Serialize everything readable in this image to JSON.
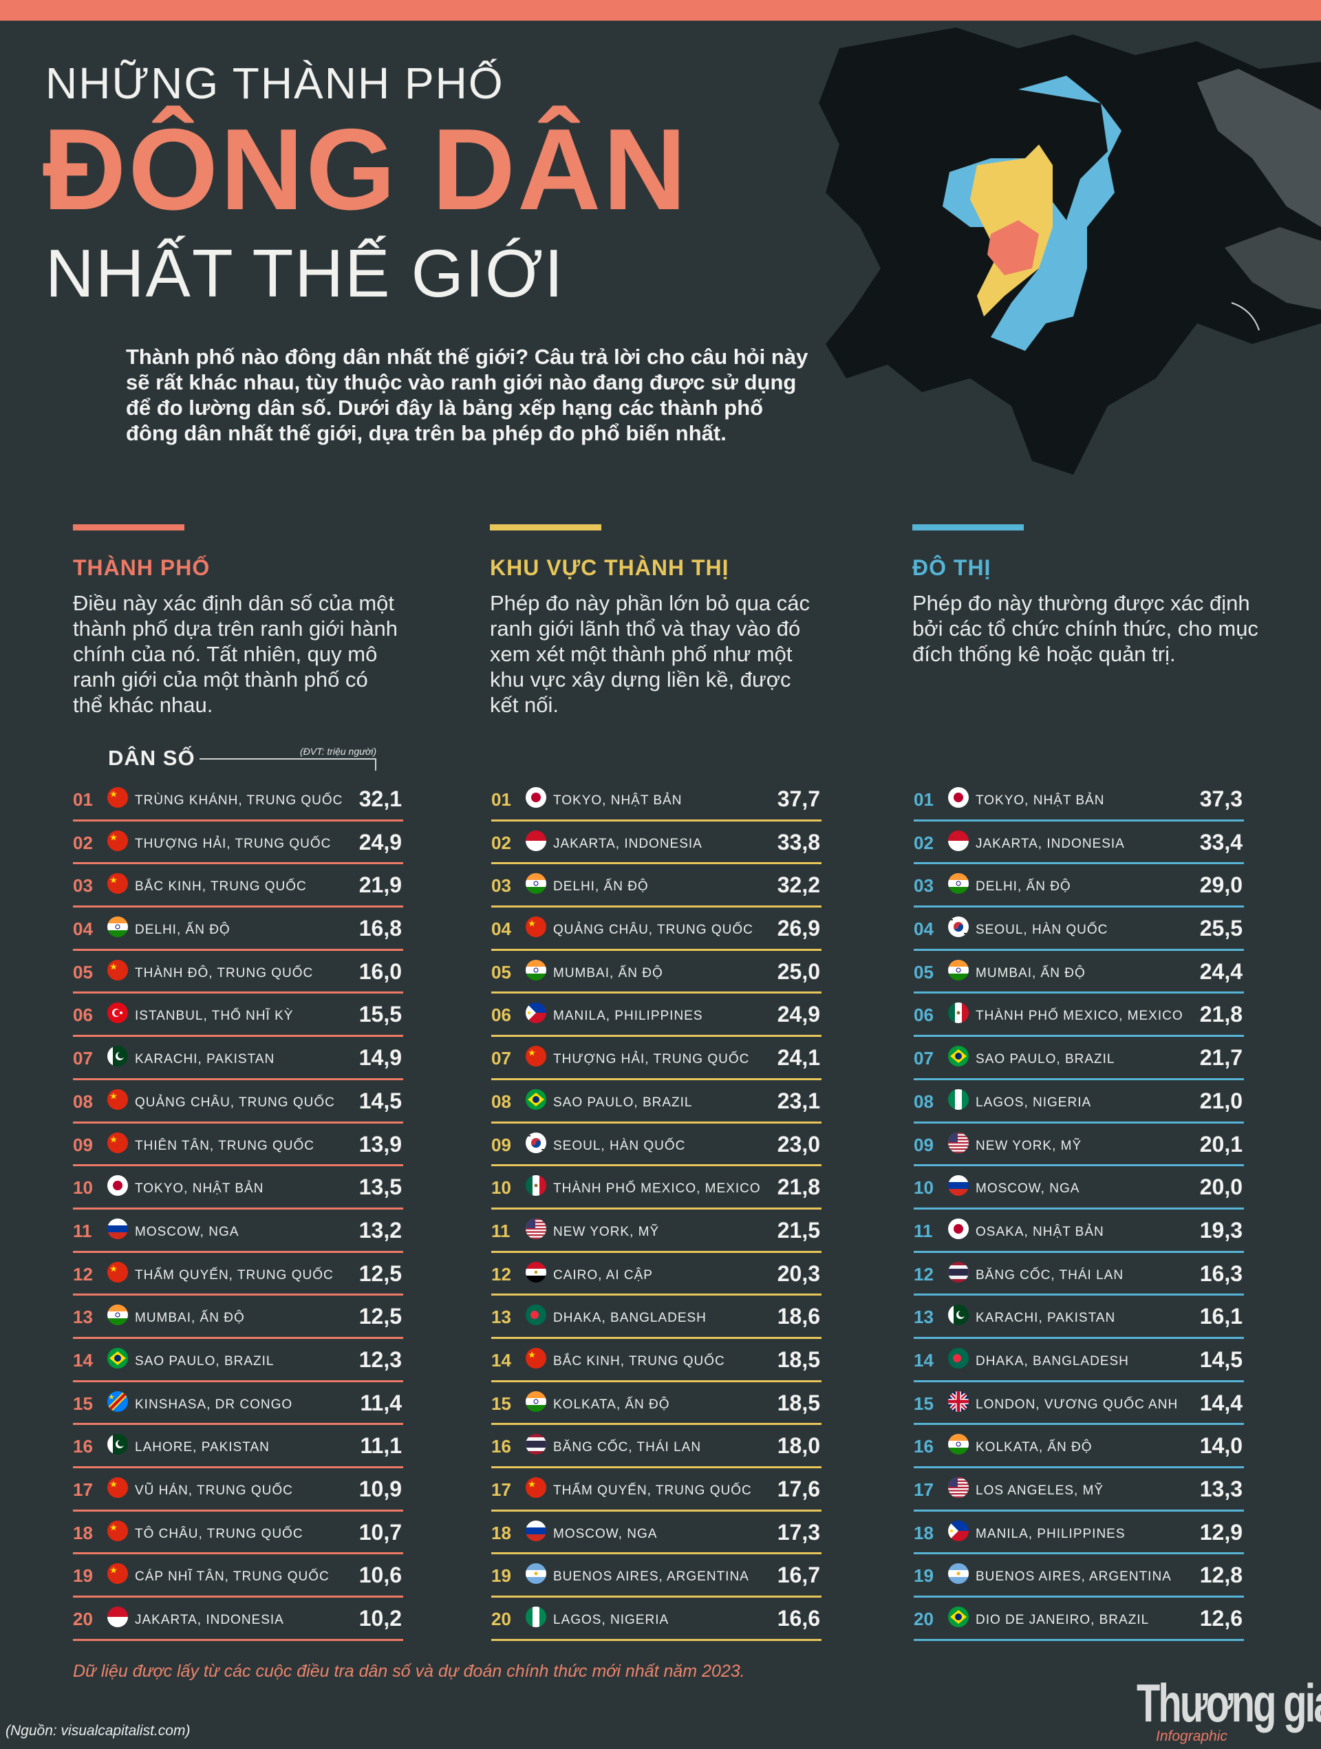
{
  "header": {
    "title_line1": "NHỮNG THÀNH PHỐ",
    "title_line2": "ĐÔNG DÂN",
    "title_line3": "NHẤT THẾ GIỚI",
    "intro": "Thành phố nào đông dân nhất thế giới? Câu trả lời cho câu hỏi này sẽ rất khác nhau, tùy thuộc vào ranh giới nào đang được sử dụng để đo lường dân số. Dưới đây là bảng xếp hạng các thành phố đông dân nhất thế giới, dựa trên ba phép đo phổ biến nhất."
  },
  "colors": {
    "accent_red": "#ee7a66",
    "accent_yellow": "#e8c65a",
    "accent_blue": "#56b4d6",
    "background": "#2c3639"
  },
  "columns": [
    {
      "heading": "THÀNH PHỐ",
      "description": "Điều này xác định dân số của một thành phố dựa trên ranh giới hành chính của nó. Tất nhiên, quy mô ranh giới của một thành phố có thể khác nhau."
    },
    {
      "heading": "KHU VỰC THÀNH THỊ",
      "description": "Phép đo này phần lớn bỏ qua các ranh giới lãnh thổ và thay vào đó xem xét một thành phố như một khu vực xây dựng liền kề, được kết nối."
    },
    {
      "heading": "ĐÔ THỊ",
      "description": "Phép đo này thường được xác định bởi các tổ chức chính thức, cho mục đích thống kê hoặc quản trị."
    }
  ],
  "population_label": "DÂN SỐ",
  "unit_note": "(ĐVT: triệu người)",
  "chart_data": {
    "type": "table",
    "unit": "(ĐVT: triệu người)",
    "columns": [
      "THÀNH PHỐ",
      "KHU VỰC THÀNH THỊ",
      "ĐÔ THỊ"
    ],
    "lists": [
      {
        "rows": [
          {
            "rank": "01",
            "flag": "china",
            "city": "TRÙNG KHÁNH, TRUNG QUỐC",
            "value": "32,1"
          },
          {
            "rank": "02",
            "flag": "china",
            "city": "THƯỢNG HẢI, TRUNG QUỐC",
            "value": "24,9"
          },
          {
            "rank": "03",
            "flag": "china",
            "city": "BẮC KINH, TRUNG QUỐC",
            "value": "21,9"
          },
          {
            "rank": "04",
            "flag": "india",
            "city": "DELHI, ẤN ĐỘ",
            "value": "16,8"
          },
          {
            "rank": "05",
            "flag": "china",
            "city": "THÀNH ĐÔ, TRUNG QUỐC",
            "value": "16,0"
          },
          {
            "rank": "06",
            "flag": "turkey",
            "city": "ISTANBUL, THỔ NHĨ KỲ",
            "value": "15,5"
          },
          {
            "rank": "07",
            "flag": "pakistan",
            "city": "KARACHI, PAKISTAN",
            "value": "14,9"
          },
          {
            "rank": "08",
            "flag": "china",
            "city": "QUẢNG CHÂU, TRUNG QUỐC",
            "value": "14,5"
          },
          {
            "rank": "09",
            "flag": "china",
            "city": "THIÊN TÂN, TRUNG QUỐC",
            "value": "13,9"
          },
          {
            "rank": "10",
            "flag": "japan",
            "city": "TOKYO, NHẬT BẢN",
            "value": "13,5"
          },
          {
            "rank": "11",
            "flag": "russia",
            "city": "MOSCOW, NGA",
            "value": "13,2"
          },
          {
            "rank": "12",
            "flag": "china",
            "city": "THẨM QUYẾN, TRUNG QUỐC",
            "value": "12,5"
          },
          {
            "rank": "13",
            "flag": "india",
            "city": "MUMBAI, ẤN ĐỘ",
            "value": "12,5"
          },
          {
            "rank": "14",
            "flag": "brazil",
            "city": "SAO PAULO, BRAZIL",
            "value": "12,3"
          },
          {
            "rank": "15",
            "flag": "drcongo",
            "city": "KINSHASA, DR CONGO",
            "value": "11,4"
          },
          {
            "rank": "16",
            "flag": "pakistan",
            "city": "LAHORE, PAKISTAN",
            "value": "11,1"
          },
          {
            "rank": "17",
            "flag": "china",
            "city": "VŨ HÁN, TRUNG QUỐC",
            "value": "10,9"
          },
          {
            "rank": "18",
            "flag": "china",
            "city": "TÔ CHÂU, TRUNG QUỐC",
            "value": "10,7"
          },
          {
            "rank": "19",
            "flag": "china",
            "city": "CÁP NHĨ TÂN, TRUNG QUỐC",
            "value": "10,6"
          },
          {
            "rank": "20",
            "flag": "indonesia",
            "city": "JAKARTA, INDONESIA",
            "value": "10,2"
          }
        ]
      },
      {
        "rows": [
          {
            "rank": "01",
            "flag": "japan",
            "city": "TOKYO, NHẬT BẢN",
            "value": "37,7"
          },
          {
            "rank": "02",
            "flag": "indonesia",
            "city": "JAKARTA, INDONESIA",
            "value": "33,8"
          },
          {
            "rank": "03",
            "flag": "india",
            "city": "DELHI, ẤN ĐỘ",
            "value": "32,2"
          },
          {
            "rank": "04",
            "flag": "china",
            "city": "QUẢNG CHÂU, TRUNG QUỐC",
            "value": "26,9"
          },
          {
            "rank": "05",
            "flag": "india",
            "city": "MUMBAI, ẤN ĐỘ",
            "value": "25,0"
          },
          {
            "rank": "06",
            "flag": "philippines",
            "city": "MANILA, PHILIPPINES",
            "value": "24,9"
          },
          {
            "rank": "07",
            "flag": "china",
            "city": "THƯỢNG HẢI, TRUNG QUỐC",
            "value": "24,1"
          },
          {
            "rank": "08",
            "flag": "brazil",
            "city": "SAO PAULO, BRAZIL",
            "value": "23,1"
          },
          {
            "rank": "09",
            "flag": "korea",
            "city": "SEOUL, HÀN QUỐC",
            "value": "23,0"
          },
          {
            "rank": "10",
            "flag": "mexico",
            "city": "THÀNH PHỐ MEXICO, MEXICO",
            "value": "21,8"
          },
          {
            "rank": "11",
            "flag": "usa",
            "city": "NEW YORK, MỸ",
            "value": "21,5"
          },
          {
            "rank": "12",
            "flag": "egypt",
            "city": "CAIRO, AI CẬP",
            "value": "20,3"
          },
          {
            "rank": "13",
            "flag": "bangladesh",
            "city": "DHAKA, BANGLADESH",
            "value": "18,6"
          },
          {
            "rank": "14",
            "flag": "china",
            "city": "BẮC KINH, TRUNG QUỐC",
            "value": "18,5"
          },
          {
            "rank": "15",
            "flag": "india",
            "city": "KOLKATA, ẤN ĐỘ",
            "value": "18,5"
          },
          {
            "rank": "16",
            "flag": "thailand",
            "city": "BĂNG CỐC, THÁI LAN",
            "value": "18,0"
          },
          {
            "rank": "17",
            "flag": "china",
            "city": "THẨM QUYẾN, TRUNG QUỐC",
            "value": "17,6"
          },
          {
            "rank": "18",
            "flag": "russia",
            "city": "MOSCOW, NGA",
            "value": "17,3"
          },
          {
            "rank": "19",
            "flag": "argentina",
            "city": "BUENOS AIRES, ARGENTINA",
            "value": "16,7"
          },
          {
            "rank": "20",
            "flag": "nigeria",
            "city": "LAGOS, NIGERIA",
            "value": "16,6"
          }
        ]
      },
      {
        "rows": [
          {
            "rank": "01",
            "flag": "japan",
            "city": "TOKYO, NHẬT BẢN",
            "value": "37,3"
          },
          {
            "rank": "02",
            "flag": "indonesia",
            "city": "JAKARTA, INDONESIA",
            "value": "33,4"
          },
          {
            "rank": "03",
            "flag": "india",
            "city": "DELHI, ẤN ĐỘ",
            "value": "29,0"
          },
          {
            "rank": "04",
            "flag": "korea",
            "city": "SEOUL, HÀN QUỐC",
            "value": "25,5"
          },
          {
            "rank": "05",
            "flag": "india",
            "city": "MUMBAI, ẤN ĐỘ",
            "value": "24,4"
          },
          {
            "rank": "06",
            "flag": "mexico",
            "city": "THÀNH PHỐ MEXICO, MEXICO",
            "value": "21,8"
          },
          {
            "rank": "07",
            "flag": "brazil",
            "city": "SAO PAULO, BRAZIL",
            "value": "21,7"
          },
          {
            "rank": "08",
            "flag": "nigeria",
            "city": "LAGOS, NIGERIA",
            "value": "21,0"
          },
          {
            "rank": "09",
            "flag": "usa",
            "city": "NEW YORK, MỸ",
            "value": "20,1"
          },
          {
            "rank": "10",
            "flag": "russia",
            "city": "MOSCOW, NGA",
            "value": "20,0"
          },
          {
            "rank": "11",
            "flag": "japan",
            "city": "OSAKA, NHẬT BẢN",
            "value": "19,3"
          },
          {
            "rank": "12",
            "flag": "thailand",
            "city": "BĂNG CỐC, THÁI LAN",
            "value": "16,3"
          },
          {
            "rank": "13",
            "flag": "pakistan",
            "city": "KARACHI, PAKISTAN",
            "value": "16,1"
          },
          {
            "rank": "14",
            "flag": "bangladesh",
            "city": "DHAKA, BANGLADESH",
            "value": "14,5"
          },
          {
            "rank": "15",
            "flag": "uk",
            "city": "LONDON, VƯƠNG QUỐC ANH",
            "value": "14,4"
          },
          {
            "rank": "16",
            "flag": "india",
            "city": "KOLKATA, ẤN ĐỘ",
            "value": "14,0"
          },
          {
            "rank": "17",
            "flag": "usa",
            "city": "LOS ANGELES, MỸ",
            "value": "13,3"
          },
          {
            "rank": "18",
            "flag": "philippines",
            "city": "MANILA, PHILIPPINES",
            "value": "12,9"
          },
          {
            "rank": "19",
            "flag": "argentina",
            "city": "BUENOS AIRES, ARGENTINA",
            "value": "12,8"
          },
          {
            "rank": "20",
            "flag": "brazil",
            "city": "DIO DE JANEIRO, BRAZIL",
            "value": "12,6"
          }
        ]
      }
    ]
  },
  "footnote": "Dữ liệu được lấy từ các cuộc điều tra dân số và dự đoán chính thức mới nhất năm 2023.",
  "source": "(Nguồn: visualcapitalist.com)",
  "brand": {
    "name": "Thương gia",
    "subtitle": "Infographic"
  }
}
